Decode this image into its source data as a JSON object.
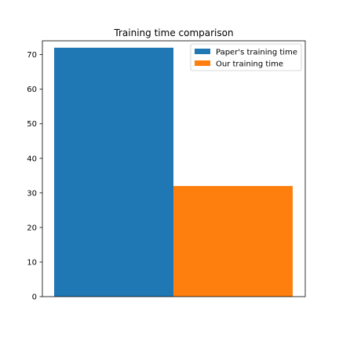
{
  "chart_data": {
    "type": "bar",
    "title": "Training time comparison",
    "xlabel": "",
    "ylabel": "",
    "ylim": [
      0,
      74
    ],
    "yticks": [
      0,
      10,
      20,
      30,
      40,
      50,
      60,
      70
    ],
    "xticks_shown": false,
    "grid": false,
    "legend_position": "top-right",
    "series": [
      {
        "name": "Paper's training time",
        "value": 72,
        "color": "#1f77b4"
      },
      {
        "name": "Our training time",
        "value": 32,
        "color": "#ff7f0e"
      }
    ]
  }
}
